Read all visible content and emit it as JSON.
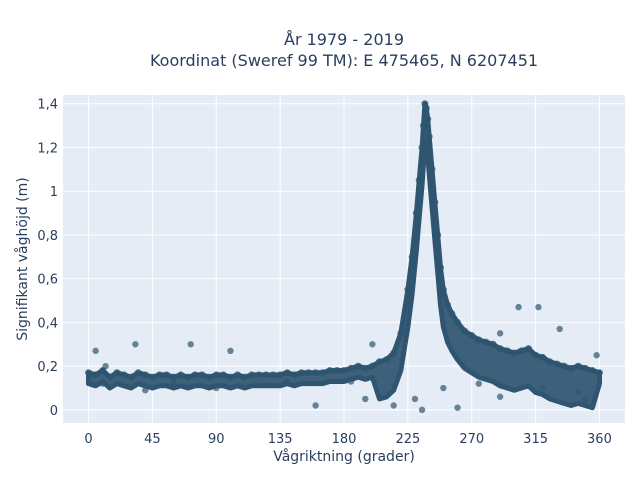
{
  "chart_data": {
    "type": "scatter",
    "title_line1": "År 1979 - 2019",
    "title_line2": "Koordinat (Sweref 99 TM): E 475465, N 6207451",
    "xlabel": "Vågriktning (grader)",
    "ylabel": "Signifikant våghöjd (m)",
    "xlim": [
      -18,
      378
    ],
    "ylim": [
      -0.06,
      1.44
    ],
    "x_ticks": [
      0,
      45,
      90,
      135,
      180,
      225,
      270,
      315,
      360
    ],
    "x_tick_labels": [
      "0",
      "45",
      "90",
      "135",
      "180",
      "225",
      "270",
      "315",
      "360"
    ],
    "y_ticks": [
      0,
      0.2,
      0.4,
      0.6,
      0.8,
      1.0,
      1.2,
      1.4
    ],
    "y_tick_labels": [
      "0",
      "0,2",
      "0,4",
      "0,6",
      "0,8",
      "1",
      "1,2",
      "1,4"
    ],
    "grid": true,
    "marker_color": "#2f5570",
    "plot_background": "#e5ecf6",
    "series": [
      {
        "values": [
          [
            0,
            0.17
          ],
          [
            5,
            0.16
          ],
          [
            10,
            0.18
          ],
          [
            15,
            0.15
          ],
          [
            20,
            0.17
          ],
          [
            25,
            0.16
          ],
          [
            30,
            0.15
          ],
          [
            35,
            0.17
          ],
          [
            40,
            0.16
          ],
          [
            45,
            0.15
          ],
          [
            50,
            0.16
          ],
          [
            55,
            0.16
          ],
          [
            60,
            0.15
          ],
          [
            65,
            0.16
          ],
          [
            70,
            0.15
          ],
          [
            75,
            0.16
          ],
          [
            80,
            0.16
          ],
          [
            85,
            0.15
          ],
          [
            90,
            0.16
          ],
          [
            95,
            0.16
          ],
          [
            100,
            0.15
          ],
          [
            105,
            0.16
          ],
          [
            110,
            0.15
          ],
          [
            115,
            0.16
          ],
          [
            120,
            0.16
          ],
          [
            125,
            0.16
          ],
          [
            130,
            0.16
          ],
          [
            135,
            0.16
          ],
          [
            140,
            0.17
          ],
          [
            145,
            0.16
          ],
          [
            150,
            0.17
          ],
          [
            155,
            0.17
          ],
          [
            160,
            0.17
          ],
          [
            165,
            0.17
          ],
          [
            170,
            0.18
          ],
          [
            175,
            0.18
          ],
          [
            180,
            0.18
          ],
          [
            185,
            0.19
          ],
          [
            190,
            0.2
          ],
          [
            195,
            0.19
          ],
          [
            200,
            0.2
          ],
          [
            205,
            0.22
          ],
          [
            210,
            0.23
          ],
          [
            215,
            0.26
          ],
          [
            220,
            0.35
          ],
          [
            225,
            0.55
          ],
          [
            228,
            0.7
          ],
          [
            231,
            0.9
          ],
          [
            233,
            1.05
          ],
          [
            235,
            1.2
          ],
          [
            236,
            1.3
          ],
          [
            237,
            1.4
          ],
          [
            238,
            1.38
          ],
          [
            239,
            1.33
          ],
          [
            240,
            1.25
          ],
          [
            242,
            1.1
          ],
          [
            244,
            0.95
          ],
          [
            246,
            0.8
          ],
          [
            248,
            0.65
          ],
          [
            250,
            0.55
          ],
          [
            253,
            0.48
          ],
          [
            256,
            0.44
          ],
          [
            260,
            0.4
          ],
          [
            265,
            0.36
          ],
          [
            270,
            0.34
          ],
          [
            275,
            0.32
          ],
          [
            280,
            0.31
          ],
          [
            285,
            0.3
          ],
          [
            290,
            0.28
          ],
          [
            295,
            0.27
          ],
          [
            300,
            0.26
          ],
          [
            305,
            0.27
          ],
          [
            310,
            0.28
          ],
          [
            315,
            0.25
          ],
          [
            320,
            0.24
          ],
          [
            325,
            0.22
          ],
          [
            330,
            0.21
          ],
          [
            335,
            0.2
          ],
          [
            340,
            0.19
          ],
          [
            345,
            0.2
          ],
          [
            350,
            0.19
          ],
          [
            355,
            0.18
          ],
          [
            360,
            0.17
          ],
          [
            5,
            0.27
          ],
          [
            33,
            0.3
          ],
          [
            72,
            0.3
          ],
          [
            100,
            0.27
          ],
          [
            160,
            0.02
          ],
          [
            235,
            0.0
          ],
          [
            260,
            0.01
          ],
          [
            290,
            0.35
          ],
          [
            303,
            0.47
          ],
          [
            317,
            0.47
          ],
          [
            332,
            0.37
          ],
          [
            345,
            0.08
          ],
          [
            350,
            0.05
          ],
          [
            90,
            0.1
          ],
          [
            40,
            0.09
          ],
          [
            200,
            0.3
          ],
          [
            215,
            0.02
          ],
          [
            250,
            0.1
          ],
          [
            275,
            0.12
          ],
          [
            290,
            0.06
          ],
          [
            320,
            0.1
          ],
          [
            358,
            0.25
          ],
          [
            10,
            0.12
          ],
          [
            12,
            0.2
          ],
          [
            60,
            0.12
          ],
          [
            140,
            0.13
          ],
          [
            185,
            0.13
          ],
          [
            195,
            0.05
          ],
          [
            230,
            0.05
          ]
        ]
      }
    ]
  }
}
